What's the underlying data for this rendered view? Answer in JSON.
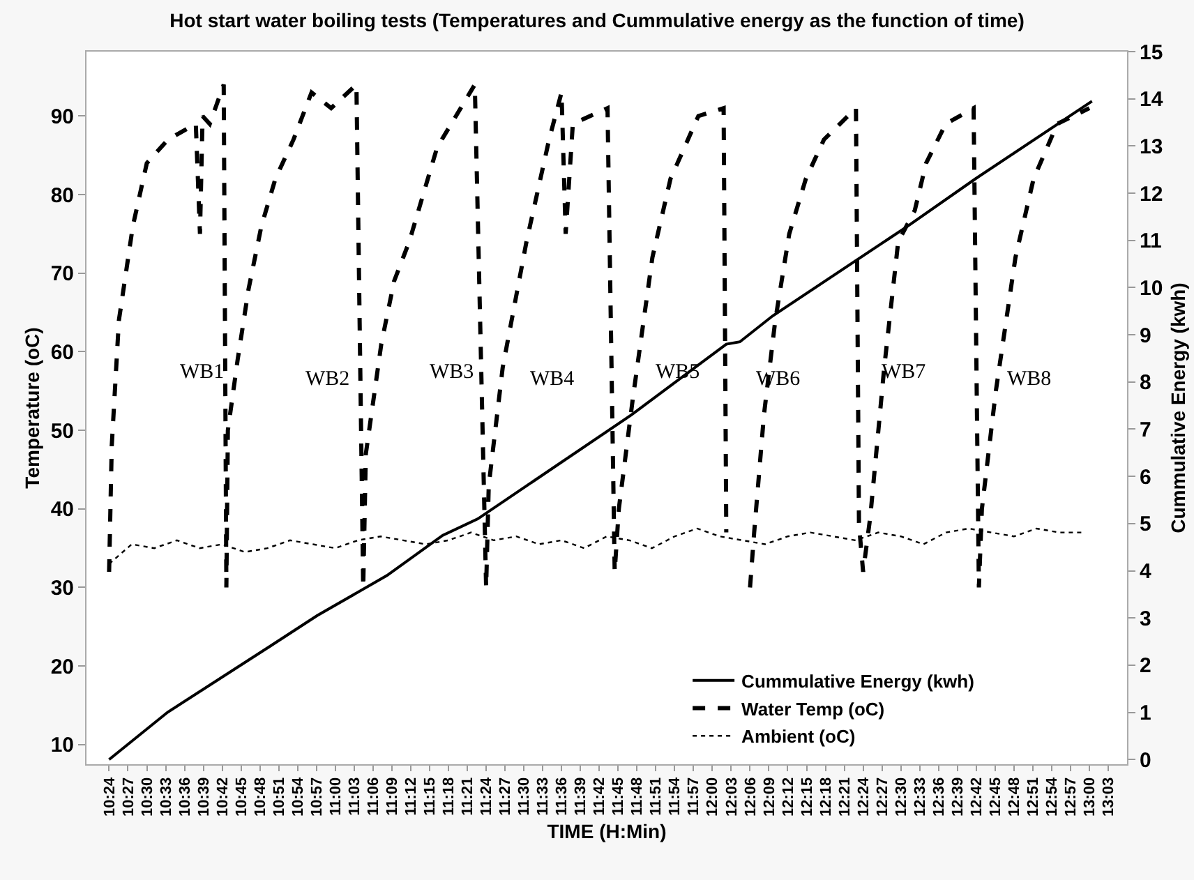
{
  "chart_data": {
    "type": "line",
    "title": "Hot start water boiling tests (Temperatures and Cummulative energy as the function of time)",
    "xlabel": "TIME (H:Min)",
    "ylabel": "Temperature (oC)",
    "y2label": "Cummulative Energy (kwh)",
    "xlim": [
      10.34,
      13.1
    ],
    "ylim": [
      7.5,
      98.2
    ],
    "y2lim": [
      -0.1,
      15
    ],
    "yticks": [
      10,
      20,
      30,
      40,
      50,
      60,
      70,
      80,
      90
    ],
    "y2ticks": [
      0,
      1,
      2,
      3,
      4,
      5,
      6,
      7,
      8,
      9,
      10,
      11,
      12,
      13,
      14,
      15
    ],
    "xticks": [
      {
        "value": 10.4,
        "label": "10:24"
      },
      {
        "value": 10.45,
        "label": "10:27"
      },
      {
        "value": 10.5,
        "label": "10:30"
      },
      {
        "value": 10.55,
        "label": "10:33"
      },
      {
        "value": 10.6,
        "label": "10:36"
      },
      {
        "value": 10.65,
        "label": "10:39"
      },
      {
        "value": 10.7,
        "label": "10:42"
      },
      {
        "value": 10.75,
        "label": "10:45"
      },
      {
        "value": 10.8,
        "label": "10:48"
      },
      {
        "value": 10.85,
        "label": "10:51"
      },
      {
        "value": 10.9,
        "label": "10:54"
      },
      {
        "value": 10.95,
        "label": "10:57"
      },
      {
        "value": 11.0,
        "label": "11:00"
      },
      {
        "value": 11.05,
        "label": "11:03"
      },
      {
        "value": 11.1,
        "label": "11:06"
      },
      {
        "value": 11.15,
        "label": "11:09"
      },
      {
        "value": 11.2,
        "label": "11:12"
      },
      {
        "value": 11.25,
        "label": "11:15"
      },
      {
        "value": 11.3,
        "label": "11:18"
      },
      {
        "value": 11.35,
        "label": "11:21"
      },
      {
        "value": 11.4,
        "label": "11:24"
      },
      {
        "value": 11.45,
        "label": "11:27"
      },
      {
        "value": 11.5,
        "label": "11:30"
      },
      {
        "value": 11.55,
        "label": "11:33"
      },
      {
        "value": 11.6,
        "label": "11:36"
      },
      {
        "value": 11.65,
        "label": "11:39"
      },
      {
        "value": 11.7,
        "label": "11:42"
      },
      {
        "value": 11.75,
        "label": "11:45"
      },
      {
        "value": 11.8,
        "label": "11:48"
      },
      {
        "value": 11.85,
        "label": "11:51"
      },
      {
        "value": 11.9,
        "label": "11:54"
      },
      {
        "value": 11.95,
        "label": "11:57"
      },
      {
        "value": 12.0,
        "label": "12:00"
      },
      {
        "value": 12.05,
        "label": "12:03"
      },
      {
        "value": 12.1,
        "label": "12:06"
      },
      {
        "value": 12.15,
        "label": "12:09"
      },
      {
        "value": 12.2,
        "label": "12:12"
      },
      {
        "value": 12.25,
        "label": "12:15"
      },
      {
        "value": 12.3,
        "label": "12:18"
      },
      {
        "value": 12.35,
        "label": "12:21"
      },
      {
        "value": 12.4,
        "label": "12:24"
      },
      {
        "value": 12.45,
        "label": "12:27"
      },
      {
        "value": 12.5,
        "label": "12:30"
      },
      {
        "value": 12.55,
        "label": "12:33"
      },
      {
        "value": 12.6,
        "label": "12:36"
      },
      {
        "value": 12.65,
        "label": "12:39"
      },
      {
        "value": 12.7,
        "label": "12:42"
      },
      {
        "value": 12.75,
        "label": "12:45"
      },
      {
        "value": 12.8,
        "label": "12:48"
      },
      {
        "value": 12.85,
        "label": "12:51"
      },
      {
        "value": 12.9,
        "label": "12:54"
      },
      {
        "value": 12.95,
        "label": "12:57"
      },
      {
        "value": 13.0,
        "label": "13:00"
      },
      {
        "value": 13.05,
        "label": "13:03"
      }
    ],
    "series": [
      {
        "name": "Cummulative Energy (kwh)",
        "color": "#000000",
        "axis": "y2",
        "line_style": "solid",
        "x": [
          10.4,
          10.555,
          10.827,
          10.952,
          11.137,
          11.285,
          11.378,
          11.785,
          12.037,
          12.073,
          12.16,
          12.518,
          12.697,
          13.007
        ],
        "values": [
          0,
          1.0,
          2.4,
          3.05,
          3.9,
          4.75,
          5.1,
          7.3,
          8.8,
          8.85,
          9.4,
          11.3,
          12.3,
          13.95
        ]
      },
      {
        "name": "Water Temp (oC)",
        "color": "#000000",
        "line_style": "dashed",
        "x": [
          10.4,
          10.407,
          10.426,
          10.463,
          10.5,
          10.556,
          10.63,
          10.641,
          10.648,
          10.667,
          10.704,
          10.711,
          10.715,
          10.741,
          10.77,
          10.804,
          10.841,
          10.889,
          10.937,
          10.989,
          11.056,
          11.074,
          11.081,
          11.122,
          11.156,
          11.196,
          11.27,
          11.37,
          11.4,
          11.407,
          11.444,
          11.507,
          11.567,
          11.6,
          11.611,
          11.63,
          11.722,
          11.741,
          11.752,
          11.789,
          11.841,
          11.889,
          11.963,
          12.03,
          12.037,
          12.07,
          12.1,
          12.111,
          12.137,
          12.167,
          12.204,
          12.248,
          12.296,
          12.381,
          12.389,
          12.4,
          12.419,
          12.456,
          12.493,
          12.537,
          12.567,
          12.619,
          12.693,
          12.707,
          12.715,
          12.752,
          12.804,
          12.852,
          12.915,
          13.0
        ],
        "values": [
          32,
          48,
          64,
          76,
          84,
          87,
          89,
          75,
          90,
          89,
          94,
          30,
          50,
          59,
          68,
          76,
          82,
          87,
          93,
          91,
          94,
          30,
          47,
          61,
          69,
          74,
          86,
          94,
          30,
          43,
          58,
          74,
          87,
          93,
          75,
          89,
          91,
          32,
          40,
          54,
          72,
          82,
          90,
          91,
          37,
          null,
          30,
          37,
          52,
          64,
          75,
          82,
          87,
          91,
          38,
          32,
          39,
          58,
          74,
          78,
          84,
          89,
          91,
          30,
          40,
          55,
          72,
          82,
          89,
          91
        ]
      },
      {
        "name": "Ambient (oC)",
        "color": "#000000",
        "line_style": "dotted",
        "x": [
          10.4,
          10.46,
          10.52,
          10.58,
          10.64,
          10.7,
          10.76,
          10.82,
          10.88,
          10.94,
          11.0,
          11.06,
          11.12,
          11.18,
          11.24,
          11.3,
          11.36,
          11.42,
          11.48,
          11.54,
          11.6,
          11.66,
          11.72,
          11.78,
          11.84,
          11.9,
          11.96,
          12.02,
          12.08,
          12.14,
          12.2,
          12.26,
          12.32,
          12.38,
          12.44,
          12.5,
          12.56,
          12.62,
          12.68,
          12.74,
          12.8,
          12.86,
          12.92,
          12.98
        ],
        "values": [
          33,
          35.5,
          35,
          36,
          35,
          35.5,
          34.5,
          35,
          36,
          35.5,
          35,
          36,
          36.5,
          36,
          35.5,
          36,
          37,
          36,
          36.5,
          35.5,
          36,
          35,
          36.5,
          36,
          35,
          36.5,
          37.5,
          36.5,
          36,
          35.5,
          36.5,
          37,
          36.5,
          36,
          37,
          36.5,
          35.5,
          37,
          37.5,
          37,
          36.5,
          37.5,
          37,
          37
        ]
      }
    ],
    "annotations": [
      "WB1",
      "WB2",
      "WB3",
      "WB4",
      "WB5",
      "WB6",
      "WB7",
      "WB8"
    ],
    "legend": "bottom right",
    "grid": false,
    "marker": "none"
  }
}
